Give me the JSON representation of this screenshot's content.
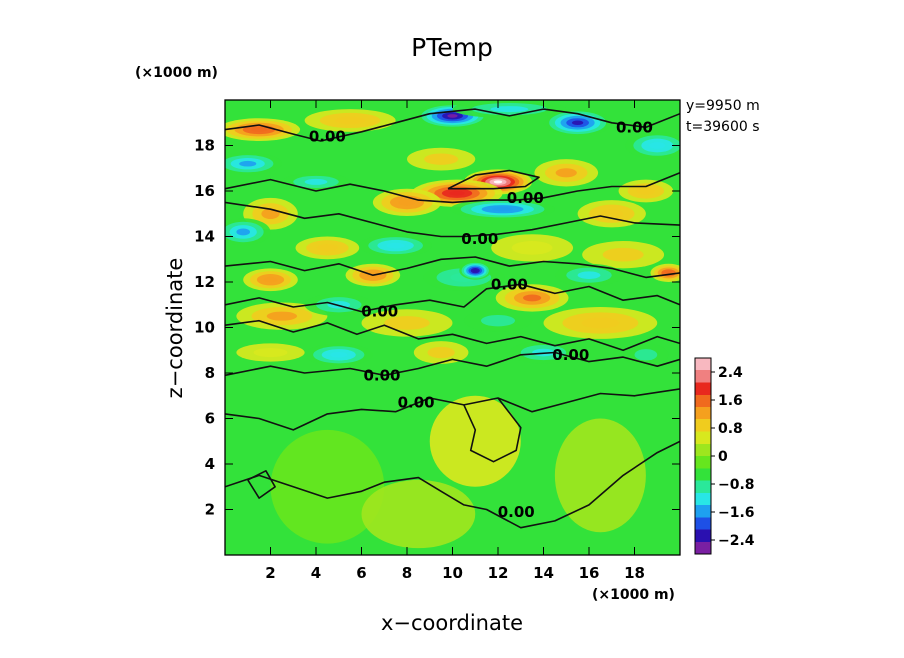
{
  "chart_data": {
    "type": "heatmap",
    "title": "PTemp",
    "xlabel": "x−coordinate",
    "ylabel": "z−coordinate",
    "x_unit": "(×1000 m)",
    "y_unit": "(×1000 m)",
    "annotations": [
      "y=9950  m",
      "t=39600 s"
    ],
    "xlim": [
      0,
      20
    ],
    "ylim": [
      0,
      20
    ],
    "x_ticks": [
      2,
      4,
      6,
      8,
      10,
      12,
      14,
      16,
      18
    ],
    "y_ticks": [
      2,
      4,
      6,
      8,
      10,
      12,
      14,
      16,
      18
    ],
    "x_tick_labels": [
      "2",
      "4",
      "6",
      "8",
      "10",
      "12",
      "14",
      "16",
      "18"
    ],
    "y_tick_labels": [
      "2",
      "4",
      "6",
      "8",
      "10",
      "12",
      "14",
      "16",
      "18"
    ],
    "colorbar": {
      "labels": [
        "2.4",
        "1.6",
        "0.8",
        "0",
        "−0.8",
        "−1.6",
        "−2.4"
      ],
      "values": [
        2.4,
        1.6,
        0.8,
        0,
        -0.8,
        -1.6,
        -2.4
      ],
      "range": [
        -2.8,
        2.8
      ],
      "colors": [
        "#7a1fa2",
        "#2a10b0",
        "#1e50e6",
        "#1ea0f0",
        "#28e6e6",
        "#2ae89a",
        "#33e23a",
        "#66e61e",
        "#9ee61e",
        "#d8e81e",
        "#f0cc1e",
        "#f5a01e",
        "#f06a1e",
        "#e8281e",
        "#f08080",
        "#f8b8c0"
      ]
    },
    "contour_level": "0.00",
    "contour_labels": [
      {
        "text": "0.00",
        "x": 4.5,
        "y": 18.4
      },
      {
        "text": "0.00",
        "x": 18.0,
        "y": 18.8
      },
      {
        "text": "0.00",
        "x": 13.2,
        "y": 15.7
      },
      {
        "text": "0.00",
        "x": 11.2,
        "y": 13.9
      },
      {
        "text": "0.00",
        "x": 12.5,
        "y": 11.9
      },
      {
        "text": "0.00",
        "x": 6.8,
        "y": 10.7
      },
      {
        "text": "0.00",
        "x": 15.2,
        "y": 8.8
      },
      {
        "text": "0.00",
        "x": 6.9,
        "y": 7.9
      },
      {
        "text": "0.00",
        "x": 8.4,
        "y": 6.7
      },
      {
        "text": "0.00",
        "x": 12.8,
        "y": 1.9
      }
    ],
    "field_blobs": [
      {
        "x": 12.0,
        "y": 16.4,
        "rx": 1.5,
        "ry": 0.55,
        "v": 2.8
      },
      {
        "x": 10.2,
        "y": 15.9,
        "rx": 2.0,
        "ry": 0.6,
        "v": 2.0
      },
      {
        "x": 8.0,
        "y": 15.5,
        "rx": 1.5,
        "ry": 0.6,
        "v": 1.3
      },
      {
        "x": 2.0,
        "y": 15.0,
        "rx": 1.2,
        "ry": 0.7,
        "v": 1.2
      },
      {
        "x": 15.0,
        "y": 16.8,
        "rx": 1.4,
        "ry": 0.6,
        "v": 1.1
      },
      {
        "x": 18.5,
        "y": 16.0,
        "rx": 1.2,
        "ry": 0.5,
        "v": 0.9
      },
      {
        "x": 12.2,
        "y": 15.2,
        "rx": 2.3,
        "ry": 0.45,
        "v": -1.6
      },
      {
        "x": 10.0,
        "y": 19.3,
        "rx": 1.6,
        "ry": 0.55,
        "v": -2.5
      },
      {
        "x": 15.5,
        "y": 19.0,
        "rx": 1.5,
        "ry": 0.6,
        "v": -2.2
      },
      {
        "x": 12.5,
        "y": 19.6,
        "rx": 2.5,
        "ry": 0.4,
        "v": -1.2
      },
      {
        "x": 1.0,
        "y": 17.2,
        "rx": 1.5,
        "ry": 0.5,
        "v": -1.5
      },
      {
        "x": 4.0,
        "y": 16.4,
        "rx": 1.5,
        "ry": 0.4,
        "v": -1.1
      },
      {
        "x": 19.0,
        "y": 18.0,
        "rx": 1.4,
        "ry": 0.6,
        "v": -1.3
      },
      {
        "x": 1.5,
        "y": 18.7,
        "rx": 1.8,
        "ry": 0.5,
        "v": 1.6
      },
      {
        "x": 5.5,
        "y": 19.1,
        "rx": 2.0,
        "ry": 0.5,
        "v": 0.9
      },
      {
        "x": 9.5,
        "y": 17.4,
        "rx": 1.5,
        "ry": 0.5,
        "v": 0.7
      },
      {
        "x": 17.0,
        "y": 15.0,
        "rx": 1.5,
        "ry": 0.6,
        "v": 1.0
      },
      {
        "x": 0.8,
        "y": 14.2,
        "rx": 1.2,
        "ry": 0.6,
        "v": -1.5
      },
      {
        "x": 7.5,
        "y": 13.6,
        "rx": 1.6,
        "ry": 0.5,
        "v": -1.3
      },
      {
        "x": 4.5,
        "y": 13.5,
        "rx": 1.4,
        "ry": 0.5,
        "v": 0.9
      },
      {
        "x": 13.5,
        "y": 13.5,
        "rx": 1.8,
        "ry": 0.6,
        "v": 0.6
      },
      {
        "x": 17.5,
        "y": 13.2,
        "rx": 1.8,
        "ry": 0.6,
        "v": 0.8
      },
      {
        "x": 10.5,
        "y": 12.2,
        "rx": 1.8,
        "ry": 0.6,
        "v": -1.0
      },
      {
        "x": 11.0,
        "y": 12.5,
        "rx": 0.7,
        "ry": 0.4,
        "v": -2.4
      },
      {
        "x": 2.0,
        "y": 12.1,
        "rx": 1.2,
        "ry": 0.5,
        "v": 1.3
      },
      {
        "x": 6.5,
        "y": 12.3,
        "rx": 1.2,
        "ry": 0.5,
        "v": 1.4
      },
      {
        "x": 19.5,
        "y": 12.4,
        "rx": 0.8,
        "ry": 0.4,
        "v": 1.6
      },
      {
        "x": 13.5,
        "y": 11.3,
        "rx": 1.6,
        "ry": 0.6,
        "v": 1.5
      },
      {
        "x": 16.0,
        "y": 12.3,
        "rx": 1.5,
        "ry": 0.5,
        "v": -1.1
      },
      {
        "x": 2.5,
        "y": 10.5,
        "rx": 2.0,
        "ry": 0.6,
        "v": 1.2
      },
      {
        "x": 8.0,
        "y": 10.2,
        "rx": 2.0,
        "ry": 0.6,
        "v": 0.8
      },
      {
        "x": 16.5,
        "y": 10.2,
        "rx": 2.5,
        "ry": 0.7,
        "v": 1.0
      },
      {
        "x": 5.0,
        "y": 11.0,
        "rx": 1.5,
        "ry": 0.5,
        "v": -1.2
      },
      {
        "x": 12.0,
        "y": 10.3,
        "rx": 1.5,
        "ry": 0.5,
        "v": -0.8
      },
      {
        "x": 5.0,
        "y": 8.8,
        "rx": 1.5,
        "ry": 0.5,
        "v": -1.3
      },
      {
        "x": 14.0,
        "y": 8.9,
        "rx": 1.5,
        "ry": 0.5,
        "v": -1.2
      },
      {
        "x": 9.5,
        "y": 8.9,
        "rx": 1.2,
        "ry": 0.5,
        "v": 0.8
      },
      {
        "x": 18.5,
        "y": 8.8,
        "rx": 1.0,
        "ry": 0.5,
        "v": -0.8
      },
      {
        "x": 2.0,
        "y": 8.9,
        "rx": 1.5,
        "ry": 0.4,
        "v": 0.6
      },
      {
        "x": 11.0,
        "y": 5.0,
        "rx": 2.0,
        "ry": 2.0,
        "v": 0.35
      },
      {
        "x": 16.5,
        "y": 3.5,
        "rx": 2.0,
        "ry": 2.5,
        "v": 0.3
      },
      {
        "x": 4.5,
        "y": 3.0,
        "rx": 2.5,
        "ry": 2.5,
        "v": -0.25
      },
      {
        "x": 8.5,
        "y": 1.8,
        "rx": 2.5,
        "ry": 1.5,
        "v": 0.3
      }
    ],
    "contours": [
      [
        [
          0.0,
          18.7
        ],
        [
          1.5,
          18.9
        ],
        [
          3.0,
          18.5
        ],
        [
          4.2,
          18.2
        ],
        [
          6.0,
          18.6
        ],
        [
          7.5,
          19.0
        ],
        [
          9.0,
          19.4
        ],
        [
          11.0,
          19.6
        ],
        [
          12.5,
          19.3
        ],
        [
          14.0,
          19.6
        ],
        [
          15.5,
          19.4
        ],
        [
          17.0,
          19.0
        ],
        [
          18.5,
          18.8
        ],
        [
          20.0,
          19.4
        ]
      ],
      [
        [
          0.0,
          16.1
        ],
        [
          2.0,
          16.5
        ],
        [
          4.0,
          16.0
        ],
        [
          5.5,
          16.3
        ],
        [
          7.0,
          16.0
        ],
        [
          8.5,
          15.6
        ],
        [
          10.0,
          15.5
        ],
        [
          11.5,
          15.6
        ],
        [
          12.8,
          15.6
        ],
        [
          14.0,
          15.7
        ],
        [
          15.5,
          16.0
        ],
        [
          17.0,
          16.2
        ],
        [
          18.5,
          16.2
        ],
        [
          20.0,
          16.8
        ]
      ],
      [
        [
          9.8,
          16.1
        ],
        [
          11.0,
          16.7
        ],
        [
          12.5,
          16.9
        ],
        [
          13.8,
          16.6
        ],
        [
          13.2,
          16.2
        ],
        [
          11.8,
          16.1
        ],
        [
          9.8,
          16.1
        ]
      ],
      [
        [
          0.0,
          15.5
        ],
        [
          2.0,
          15.2
        ],
        [
          3.5,
          14.8
        ],
        [
          5.0,
          15.0
        ],
        [
          6.5,
          14.6
        ],
        [
          8.0,
          14.2
        ],
        [
          9.5,
          14.0
        ],
        [
          10.5,
          14.0
        ],
        [
          12.0,
          14.1
        ],
        [
          13.5,
          14.3
        ],
        [
          15.0,
          14.6
        ],
        [
          16.5,
          14.9
        ],
        [
          18.0,
          14.6
        ],
        [
          20.0,
          14.5
        ]
      ],
      [
        [
          0.0,
          12.7
        ],
        [
          2.0,
          12.9
        ],
        [
          3.5,
          12.5
        ],
        [
          5.0,
          12.8
        ],
        [
          6.5,
          12.3
        ],
        [
          8.0,
          12.6
        ],
        [
          9.5,
          13.0
        ],
        [
          11.0,
          13.1
        ],
        [
          12.5,
          12.7
        ],
        [
          14.0,
          12.9
        ],
        [
          15.5,
          12.8
        ],
        [
          17.0,
          12.6
        ],
        [
          18.5,
          12.2
        ],
        [
          20.0,
          12.4
        ]
      ],
      [
        [
          0.0,
          11.0
        ],
        [
          1.5,
          11.3
        ],
        [
          3.0,
          10.9
        ],
        [
          4.5,
          11.1
        ],
        [
          6.0,
          10.7
        ],
        [
          7.5,
          11.0
        ],
        [
          9.0,
          11.2
        ],
        [
          10.5,
          10.9
        ],
        [
          11.5,
          11.7
        ],
        [
          13.0,
          11.9
        ],
        [
          14.5,
          11.5
        ],
        [
          16.0,
          11.8
        ],
        [
          17.5,
          11.2
        ],
        [
          19.0,
          11.4
        ],
        [
          20.0,
          11.0
        ]
      ],
      [
        [
          0.0,
          10.1
        ],
        [
          1.5,
          10.3
        ],
        [
          3.0,
          9.8
        ],
        [
          4.5,
          10.2
        ],
        [
          5.8,
          9.7
        ],
        [
          7.0,
          10.1
        ],
        [
          8.5,
          9.5
        ],
        [
          10.0,
          9.7
        ],
        [
          11.5,
          9.3
        ],
        [
          13.0,
          9.6
        ],
        [
          14.5,
          9.2
        ],
        [
          16.0,
          9.5
        ],
        [
          17.5,
          9.0
        ],
        [
          19.0,
          9.6
        ],
        [
          20.0,
          9.3
        ]
      ],
      [
        [
          0.0,
          7.9
        ],
        [
          2.0,
          8.3
        ],
        [
          3.5,
          8.0
        ],
        [
          5.5,
          8.2
        ],
        [
          7.0,
          7.9
        ],
        [
          8.5,
          8.2
        ],
        [
          10.0,
          8.6
        ],
        [
          11.5,
          8.3
        ],
        [
          13.0,
          8.8
        ],
        [
          14.5,
          8.9
        ],
        [
          16.0,
          8.5
        ],
        [
          17.5,
          8.7
        ],
        [
          19.0,
          8.3
        ],
        [
          20.0,
          8.6
        ]
      ],
      [
        [
          0.0,
          6.2
        ],
        [
          1.5,
          6.0
        ],
        [
          3.0,
          5.5
        ],
        [
          4.5,
          6.2
        ],
        [
          6.0,
          6.4
        ],
        [
          7.5,
          6.3
        ],
        [
          9.0,
          6.9
        ],
        [
          10.5,
          6.6
        ],
        [
          12.0,
          6.9
        ],
        [
          13.5,
          6.3
        ],
        [
          15.0,
          6.7
        ],
        [
          16.5,
          7.1
        ],
        [
          18.0,
          7.0
        ],
        [
          20.0,
          7.3
        ]
      ],
      [
        [
          10.5,
          6.6
        ],
        [
          11.0,
          5.5
        ],
        [
          10.8,
          4.6
        ],
        [
          11.8,
          4.1
        ],
        [
          12.8,
          4.6
        ],
        [
          13.0,
          5.6
        ],
        [
          12.0,
          6.9
        ]
      ],
      [
        [
          0.0,
          3.0
        ],
        [
          1.5,
          3.5
        ],
        [
          3.0,
          3.0
        ],
        [
          4.5,
          2.5
        ],
        [
          6.0,
          2.8
        ],
        [
          7.0,
          3.2
        ],
        [
          8.5,
          3.4
        ],
        [
          9.5,
          2.8
        ],
        [
          10.5,
          2.2
        ],
        [
          11.5,
          2.0
        ],
        [
          13.0,
          1.2
        ],
        [
          14.5,
          1.5
        ],
        [
          16.0,
          2.2
        ],
        [
          17.5,
          3.5
        ],
        [
          19.0,
          4.5
        ],
        [
          20.0,
          5.0
        ]
      ],
      [
        [
          1.0,
          3.3
        ],
        [
          1.5,
          2.5
        ],
        [
          2.2,
          3.0
        ],
        [
          1.8,
          3.7
        ],
        [
          1.0,
          3.3
        ]
      ]
    ]
  }
}
